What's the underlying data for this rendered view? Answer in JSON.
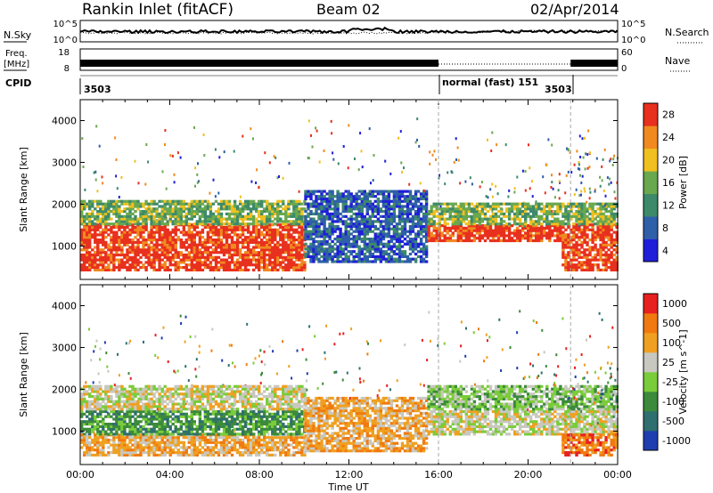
{
  "header": {
    "station": "Rankin Inlet (fitACF)",
    "beam": "Beam 02",
    "date": "02/Apr/2014"
  },
  "strip": {
    "nsky_label": "N.Sky",
    "nsky_ticks": [
      "10^5",
      "10^0"
    ],
    "nsearch_label": "N.Search",
    "nsearch_ticks": [
      "10^5",
      "10^0"
    ],
    "freq_label": "Freq.",
    "freq_unit": "[MHz]",
    "freq_ticks": [
      "18",
      "8"
    ],
    "nave_label": "Nave",
    "nave_ticks": [
      "60",
      "0"
    ],
    "cpid_label": "CPID",
    "cpid_segments": [
      "3503",
      "normal (fast) 151",
      "3503"
    ]
  },
  "chart_data": [
    {
      "type": "heatmap",
      "title": "",
      "ylabel": "Slant Range [km]",
      "xlabel": "",
      "x_ticks": [
        "00:00",
        "04:00",
        "08:00",
        "12:00",
        "16:00",
        "20:00",
        "00:00"
      ],
      "y_ticks": [
        1000,
        2000,
        3000,
        4000
      ],
      "ylim": [
        200,
        4500
      ],
      "x_range_hours": [
        0,
        24
      ],
      "colorbar": {
        "label": "Power [dB]",
        "ticks": [
          "4",
          "8",
          "12",
          "16",
          "20",
          "24",
          "28"
        ],
        "colors": [
          "#1f1fd9",
          "#2e5fa8",
          "#3d8a6a",
          "#6aa84f",
          "#f0c020",
          "#f08a20",
          "#e8301e"
        ]
      },
      "bands": [
        {
          "t0": 0.0,
          "t1": 10.0,
          "r0": 400,
          "r1": 1500,
          "level": 6
        },
        {
          "t0": 0.0,
          "t1": 10.0,
          "r0": 1500,
          "r1": 2100,
          "level": 3
        },
        {
          "t0": 10.0,
          "t1": 15.5,
          "r0": 600,
          "r1": 2300,
          "level": 1
        },
        {
          "t0": 15.5,
          "t1": 21.5,
          "r0": 1100,
          "r1": 1500,
          "level": 6
        },
        {
          "t0": 15.5,
          "t1": 21.5,
          "r0": 1500,
          "r1": 2000,
          "level": 3
        },
        {
          "t0": 21.5,
          "t1": 24.0,
          "r0": 400,
          "r1": 1500,
          "level": 6
        },
        {
          "t0": 21.5,
          "t1": 24.0,
          "r0": 1500,
          "r1": 2000,
          "level": 3
        }
      ]
    },
    {
      "type": "heatmap",
      "title": "",
      "ylabel": "Slant Range [km]",
      "xlabel": "Time UT",
      "x_ticks": [
        "00:00",
        "04:00",
        "08:00",
        "12:00",
        "16:00",
        "20:00",
        "00:00"
      ],
      "y_ticks": [
        1000,
        2000,
        3000,
        4000
      ],
      "ylim": [
        200,
        4500
      ],
      "x_range_hours": [
        0,
        24
      ],
      "colorbar": {
        "label": "Velocity [m s^-1]",
        "ticks": [
          "1000",
          "500",
          "100",
          "25",
          "-25",
          "-100",
          "-500",
          "-1000"
        ],
        "colors": [
          "#1f3fb0",
          "#2f6f6f",
          "#3c8a3c",
          "#7acc3a",
          "#c8c8c0",
          "#f0a020",
          "#f07a10",
          "#e82020"
        ]
      },
      "bands": [
        {
          "t0": 0.0,
          "t1": 10.0,
          "r0": 400,
          "r1": 900,
          "level": 5
        },
        {
          "t0": 0.0,
          "t1": 10.0,
          "r0": 900,
          "r1": 1500,
          "level": 2
        },
        {
          "t0": 0.0,
          "t1": 10.0,
          "r0": 1500,
          "r1": 2100,
          "level": 4
        },
        {
          "t0": 10.0,
          "t1": 15.5,
          "r0": 500,
          "r1": 1800,
          "level": 5
        },
        {
          "t0": 15.5,
          "t1": 24.0,
          "r0": 900,
          "r1": 1500,
          "level": 4
        },
        {
          "t0": 15.5,
          "t1": 24.0,
          "r0": 1500,
          "r1": 2100,
          "level": 3
        },
        {
          "t0": 21.5,
          "t1": 24.0,
          "r0": 400,
          "r1": 900,
          "level": 6
        }
      ]
    }
  ]
}
